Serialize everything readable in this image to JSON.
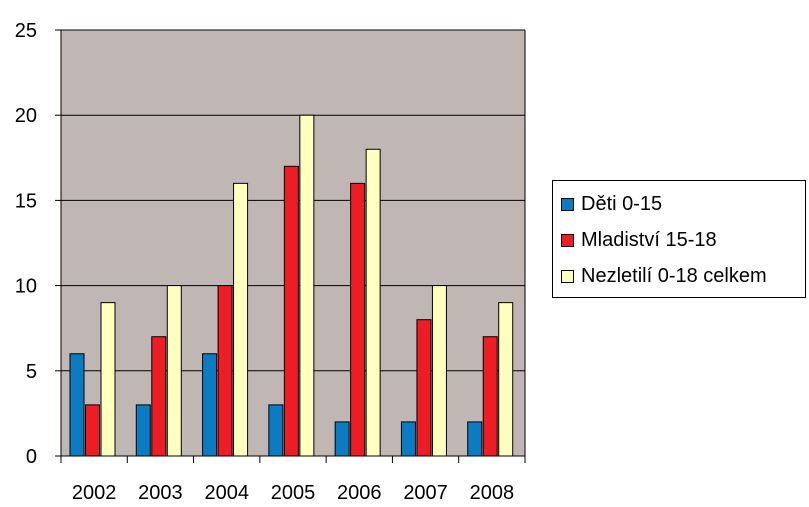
{
  "chart_data": {
    "type": "bar",
    "categories": [
      "2002",
      "2003",
      "2004",
      "2005",
      "2006",
      "2007",
      "2008"
    ],
    "series": [
      {
        "name": "Děti 0-15",
        "values": [
          6,
          3,
          6,
          3,
          2,
          2,
          2
        ],
        "color": "#0b7cc2"
      },
      {
        "name": "Mladiství 15-18",
        "values": [
          3,
          7,
          10,
          17,
          16,
          8,
          7
        ],
        "color": "#ee1c25"
      },
      {
        "name": "Nezletilí 0-18 celkem",
        "values": [
          9,
          10,
          16,
          20,
          18,
          10,
          9
        ],
        "color": "#ffffc0"
      }
    ],
    "ylim": [
      0,
      25
    ],
    "yticks": [
      "0",
      "5",
      "10",
      "15",
      "20",
      "25"
    ],
    "grid": true,
    "legend_position": "right",
    "plot_background": "#c0b7b5",
    "title": "",
    "xlabel": "",
    "ylabel": ""
  }
}
